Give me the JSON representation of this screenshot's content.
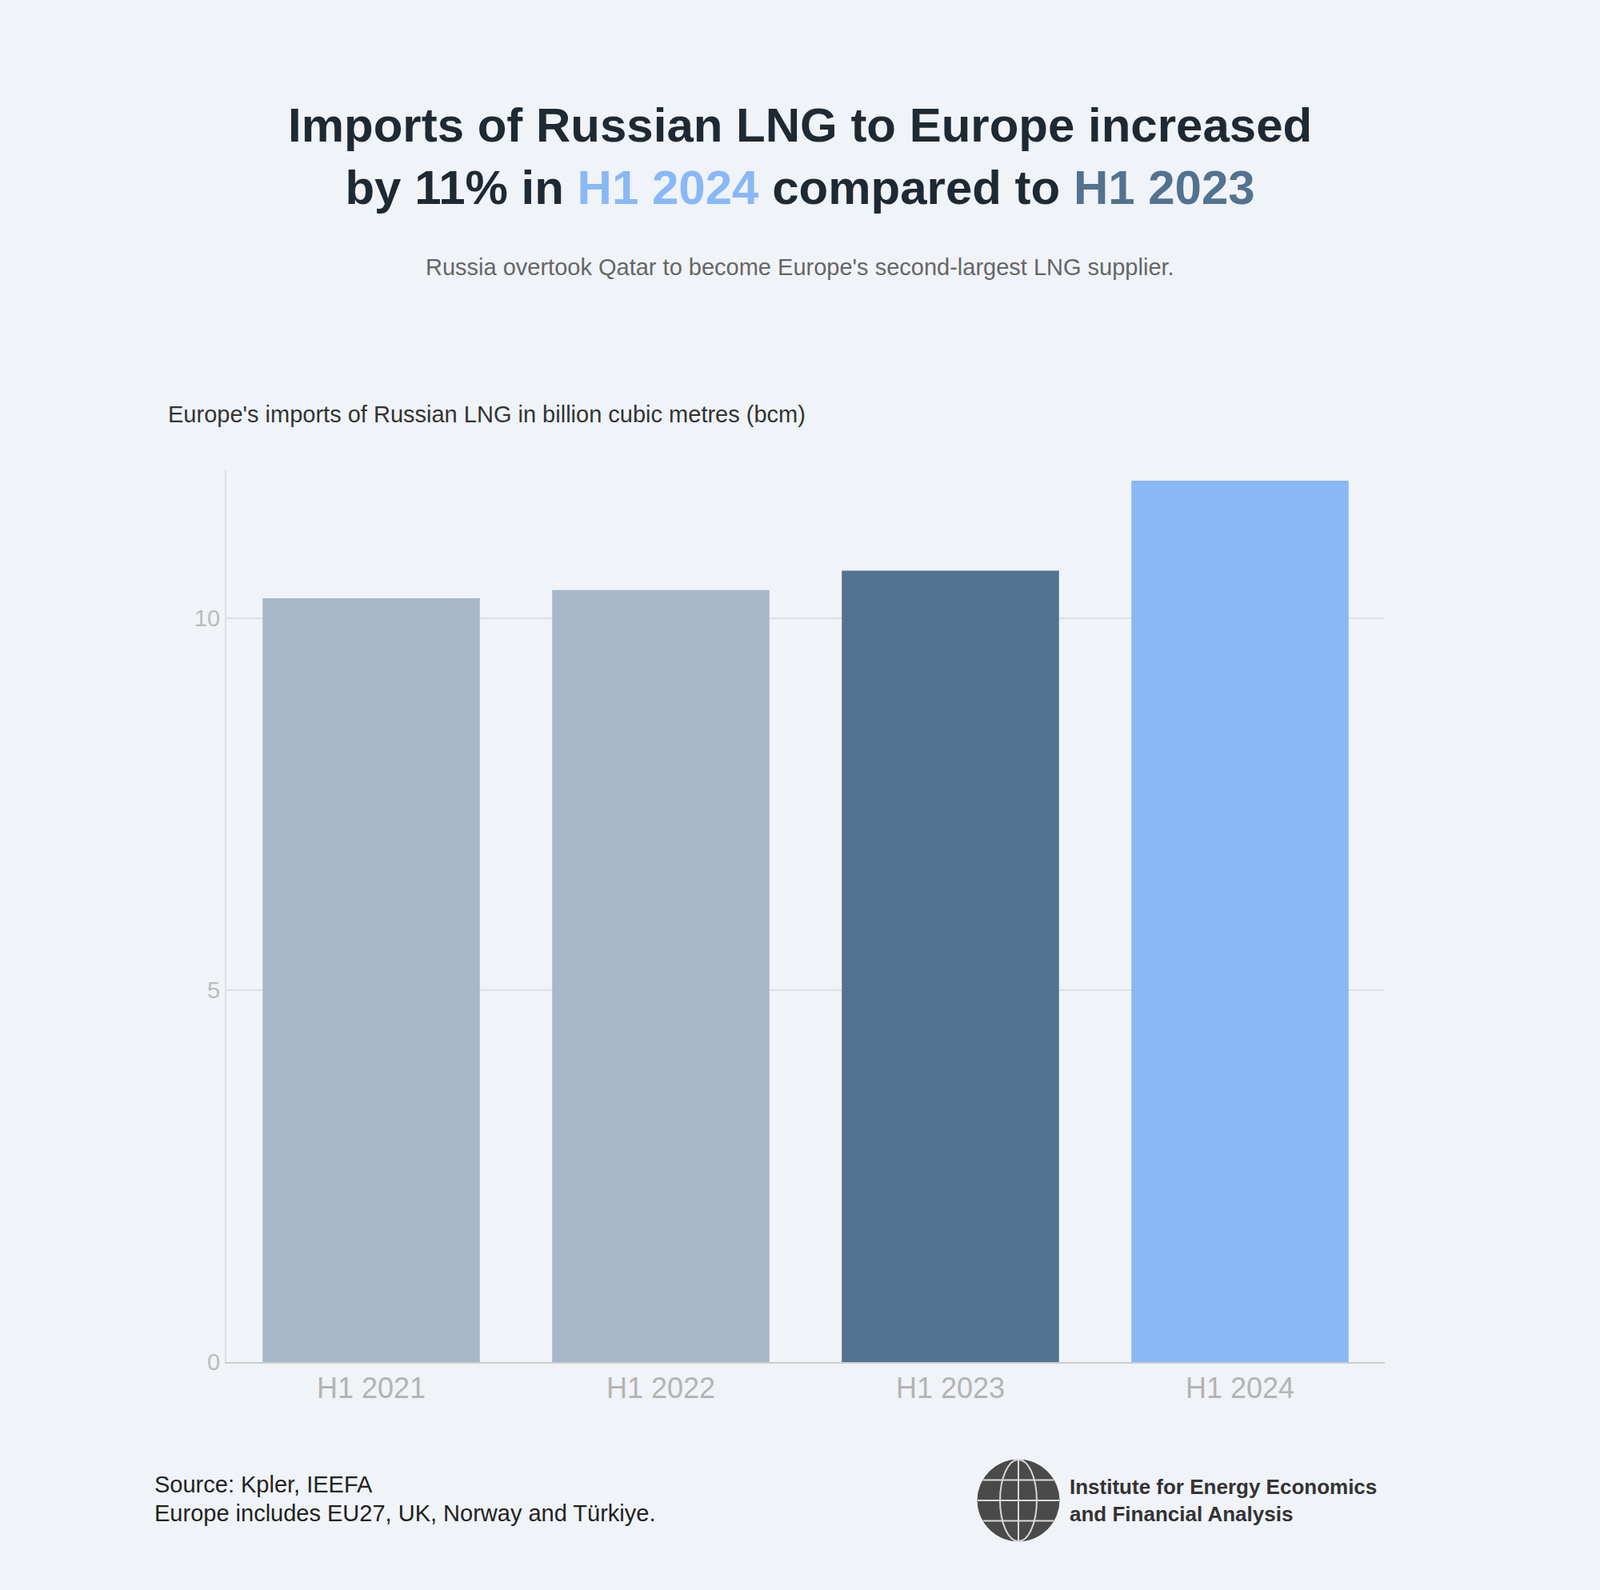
{
  "chart_data": {
    "type": "bar",
    "title": "Imports of Russian LNG to Europe increased\nby 11% in H1 2024 compared to H1 2023",
    "subtitle": "Russia overtook Qatar to become Europe's second-largest LNG supplier.",
    "ylabel": "Europe's imports of Russian LNG in billion cubic metres (bcm)",
    "categories": [
      "H1 2021",
      "H1 2022",
      "H1 2023",
      "H1 2024"
    ],
    "values": [
      10.27,
      10.38,
      10.64,
      11.85
    ],
    "colors": [
      "#a6b8c9",
      "#a6b8c9",
      "#52728f",
      "#89b8f7"
    ],
    "ylim": [
      0,
      12
    ],
    "yticks": [
      0,
      5,
      10
    ],
    "grid": true,
    "source": "Source: Kpler, IEEFA",
    "note": "Europe includes EU27, UK, Norway and Türkiye.",
    "logo": [
      "Institute for Energy Economics",
      "and Financial Analysis"
    ]
  }
}
